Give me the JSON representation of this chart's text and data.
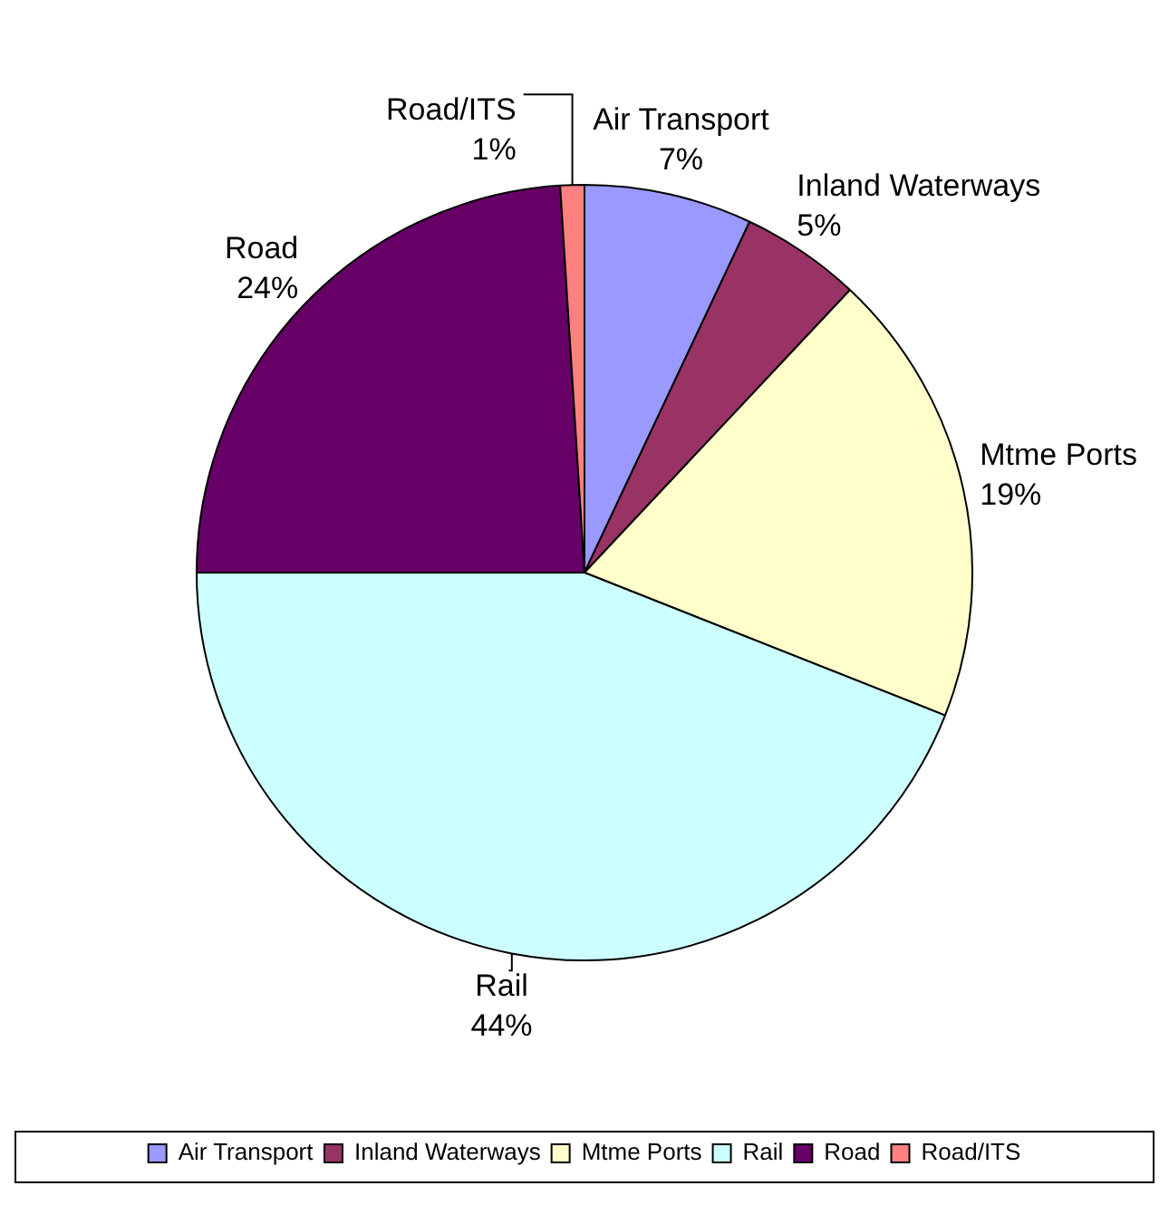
{
  "chart_data": {
    "type": "pie",
    "categories": [
      "Air Transport",
      "Inland Waterways",
      "Mtme Ports",
      "Rail",
      "Road",
      "Road/ITS"
    ],
    "values": [
      7,
      5,
      19,
      44,
      24,
      1
    ],
    "colors": [
      "#9999ff",
      "#993366",
      "#ffffcc",
      "#ccffff",
      "#660066",
      "#ff8080"
    ],
    "value_labels": [
      "7%",
      "5%",
      "19%",
      "44%",
      "24%",
      "1%"
    ],
    "legend": "bottom"
  }
}
